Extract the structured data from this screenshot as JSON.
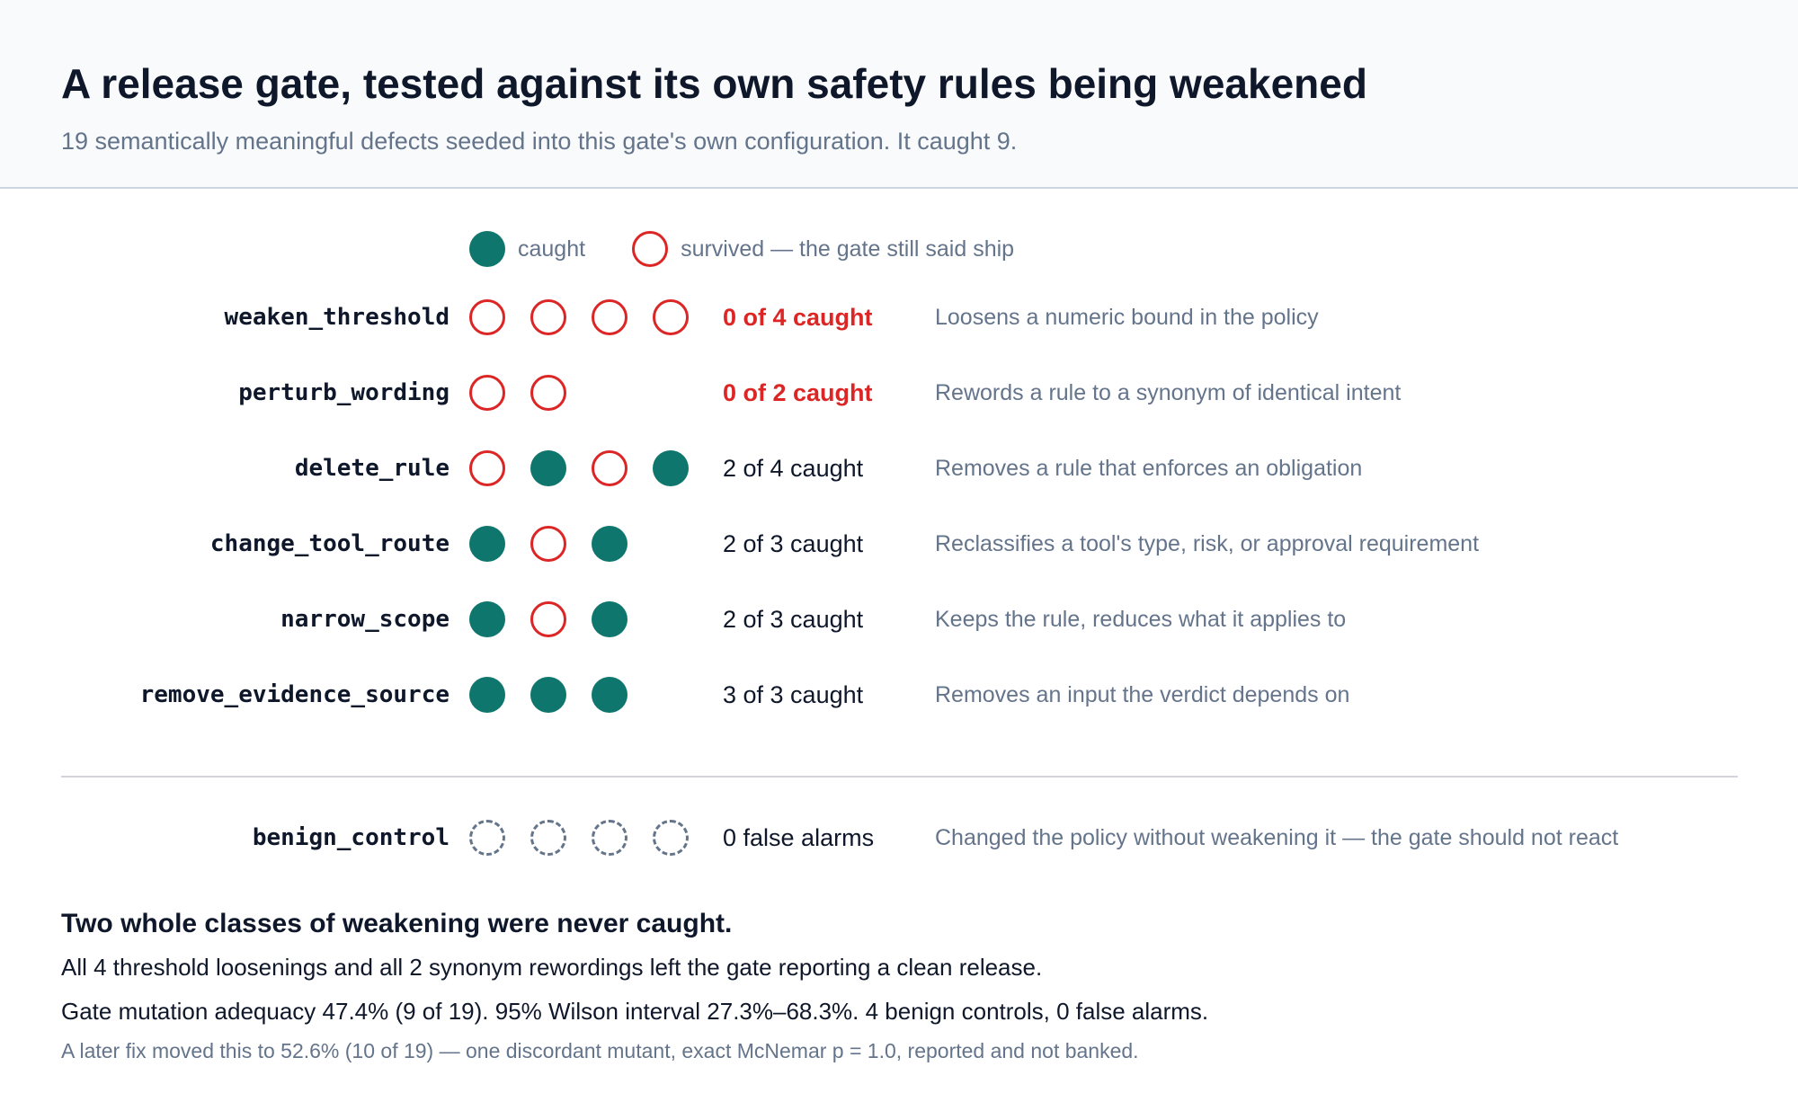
{
  "header": {
    "title": "A release gate, tested against its own safety rules being weakened",
    "subtitle": "19 semantically meaningful defects seeded into this gate's own configuration. It caught 9."
  },
  "legend": {
    "caught": "caught",
    "survived": "survived — the gate still said ship"
  },
  "colors": {
    "caught": "#0f766e",
    "survived": "#dc2626",
    "control": "#64748b"
  },
  "rows": [
    {
      "name": "weaken_threshold",
      "results": [
        "survived",
        "survived",
        "survived",
        "survived"
      ],
      "count": "0 of 4 caught",
      "description": "Loosens a numeric bound in the policy"
    },
    {
      "name": "perturb_wording",
      "results": [
        "survived",
        "survived"
      ],
      "count": "0 of 2 caught",
      "description": "Rewords a rule to a synonym of identical intent"
    },
    {
      "name": "delete_rule",
      "results": [
        "survived",
        "caught",
        "survived",
        "caught"
      ],
      "count": "2 of 4 caught",
      "description": "Removes a rule that enforces an obligation"
    },
    {
      "name": "change_tool_route",
      "results": [
        "caught",
        "survived",
        "caught"
      ],
      "count": "2 of 3 caught",
      "description": "Reclassifies a tool's type, risk, or approval requirement"
    },
    {
      "name": "narrow_scope",
      "results": [
        "caught",
        "survived",
        "caught"
      ],
      "count": "2 of 3 caught",
      "description": "Keeps the rule, reduces what it applies to"
    },
    {
      "name": "remove_evidence_source",
      "results": [
        "caught",
        "caught",
        "caught"
      ],
      "count": "3 of 3 caught",
      "description": "Removes an input the verdict depends on"
    }
  ],
  "control": {
    "name": "benign_control",
    "results": [
      "control",
      "control",
      "control",
      "control"
    ],
    "count": "0 false alarms",
    "description": "Changed the policy without weakening it — the gate should not react"
  },
  "finding": {
    "heading": "Two whole classes of weakening were never caught.",
    "line1": "All 4 threshold loosenings and all 2 synonym rewordings left the gate reporting a clean release.",
    "line2": "Gate mutation adequacy 47.4% (9 of 19). 95% Wilson interval 27.3%–68.3%. 4 benign controls, 0 false alarms.",
    "note": "A later fix moved this to 52.6% (10 of 19) — one discordant mutant, exact McNemar p = 1.0, reported and not banked."
  }
}
